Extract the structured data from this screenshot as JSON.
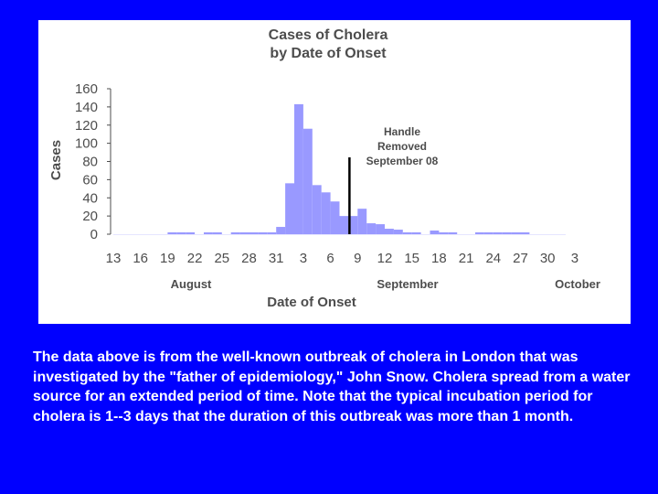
{
  "colors": {
    "background": "#0000ff",
    "panel": "#ffffff",
    "bar": "#9999ff",
    "text": "#4d4d4d",
    "annotation_line": "#000000",
    "caption": "#ffffff"
  },
  "chart_data": {
    "type": "bar",
    "title": [
      "Cases of Cholera",
      "by Date of Onset"
    ],
    "xlabel": "Date of Onset",
    "ylabel": "Cases",
    "ylim": [
      0,
      160
    ],
    "yticks": [
      0,
      20,
      40,
      60,
      80,
      100,
      120,
      140,
      160
    ],
    "xtick_labels": [
      "13",
      "16",
      "19",
      "22",
      "25",
      "28",
      "31",
      "3",
      "6",
      "9",
      "12",
      "15",
      "18",
      "21",
      "24",
      "27",
      "30",
      "3"
    ],
    "month_labels": [
      "August",
      "September",
      "October"
    ],
    "days": [
      "Aug 19",
      "Aug 20",
      "Aug 21",
      "Aug 22",
      "Aug 23",
      "Aug 24",
      "Aug 25",
      "Aug 26",
      "Aug 27",
      "Aug 28",
      "Aug 29",
      "Aug 30",
      "Aug 31",
      "Sep 1",
      "Sep 2",
      "Sep 3",
      "Sep 4",
      "Sep 5",
      "Sep 6",
      "Sep 7",
      "Sep 8",
      "Sep 9",
      "Sep 10",
      "Sep 11",
      "Sep 12",
      "Sep 13",
      "Sep 14",
      "Sep 15",
      "Sep 16",
      "Sep 17",
      "Sep 18",
      "Sep 19",
      "Sep 20",
      "Sep 21",
      "Sep 22",
      "Sep 23",
      "Sep 24",
      "Sep 25",
      "Sep 26",
      "Sep 27",
      "Sep 28",
      "Sep 29"
    ],
    "values": [
      1,
      1,
      1,
      0,
      1,
      1,
      0,
      1,
      1,
      1,
      1,
      1,
      8,
      56,
      143,
      116,
      54,
      46,
      36,
      20,
      20,
      28,
      12,
      11,
      6,
      5,
      1,
      1,
      0,
      4,
      2,
      1,
      0,
      0,
      1,
      1,
      1,
      1,
      1,
      1,
      0,
      0
    ],
    "grid": false,
    "legend": "none",
    "annotation": {
      "text": [
        "Handle",
        "Removed",
        "September 08"
      ],
      "date": "Sep 8"
    }
  },
  "caption": "The data above is from the well-known outbreak of cholera in London that was investigated by the \"father of epidemiology,\" John Snow. Cholera spread from a water source for an extended period of time. Note that the typical incubation period for cholera is 1--3 days that the duration of this outbreak was more than 1 month."
}
